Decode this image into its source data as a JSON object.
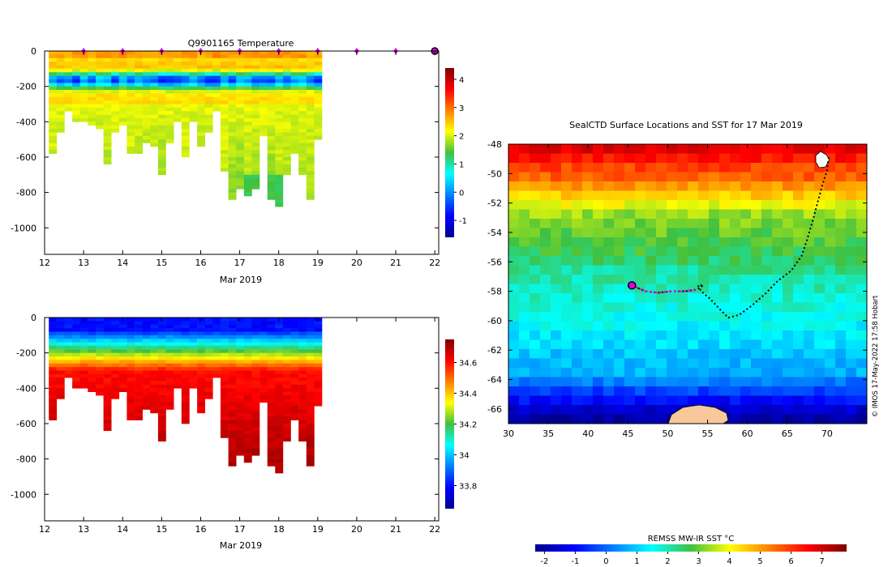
{
  "chart_data": [
    {
      "id": "temperature",
      "type": "heatmap",
      "title": "Q9901165  Temperature",
      "xlabel": "Mar 2019",
      "ylabel": "",
      "xlim": [
        12,
        22.1
      ],
      "ylim": [
        -1150,
        0
      ],
      "xticks": [
        12,
        13,
        14,
        15,
        16,
        17,
        18,
        19,
        20,
        21,
        22
      ],
      "yticks": [
        0,
        -200,
        -400,
        -600,
        -800,
        -1000
      ],
      "colorbar": {
        "min": -1.6,
        "max": 4.4,
        "ticks": [
          4,
          3,
          2,
          1,
          0,
          -1
        ],
        "colormap": "jet"
      },
      "surface_markers": [
        13,
        14,
        15,
        16,
        17,
        18,
        19,
        20,
        21
      ],
      "end_marker": 22,
      "profile_start": 12.1,
      "profile_step": 0.2,
      "profile_depths": [
        570,
        460,
        340,
        385,
        390,
        420,
        430,
        640,
        460,
        420,
        575,
        570,
        505,
        540,
        695,
        510,
        390,
        600,
        385,
        530,
        455,
        340,
        680,
        835,
        780,
        815,
        765,
        465,
        835,
        870,
        700,
        580,
        700,
        835,
        500
      ],
      "profile_profile": "surface ~2.5, cold core ~0 near 150-220 m, ~2 below 300 m"
    },
    {
      "id": "salinity",
      "type": "heatmap",
      "title": "",
      "xlabel": "Mar 2019",
      "ylabel": "",
      "xlim": [
        12,
        22.1
      ],
      "ylim": [
        -1150,
        0
      ],
      "xticks": [
        12,
        13,
        14,
        15,
        16,
        17,
        18,
        19,
        20,
        21,
        22
      ],
      "yticks": [
        0,
        -200,
        -400,
        -600,
        -800,
        -1000
      ],
      "colorbar": {
        "min": 33.65,
        "max": 34.75,
        "ticks": [
          34.6,
          34.4,
          34.2,
          34,
          33.8
        ],
        "colormap": "jet"
      },
      "profile_profile": "~33.8 at surface rising to ~34.65 below 400 m"
    },
    {
      "id": "sst-map",
      "type": "heatmap",
      "title": "SealCTD Surface Locations and SST for 17 Mar 2019",
      "xlabel": "",
      "ylabel": "",
      "xlim": [
        30,
        75
      ],
      "ylim": [
        -67,
        -48
      ],
      "xticks": [
        30,
        35,
        40,
        45,
        50,
        55,
        60,
        65,
        70
      ],
      "yticks": [
        -48,
        -50,
        -52,
        -54,
        -56,
        -58,
        -60,
        -62,
        -64,
        -66
      ],
      "colorbar": {
        "label": "REMSS MW-IR SST °C",
        "min": -2.3,
        "max": 7.8,
        "ticks": [
          -2,
          -1,
          0,
          1,
          2,
          3,
          4,
          5,
          6,
          7
        ],
        "colormap": "jet"
      },
      "track_lonlat": [
        [
          70.2,
          -48.9
        ],
        [
          70,
          -49.8
        ],
        [
          69.4,
          -50.8
        ],
        [
          68.8,
          -52
        ],
        [
          68.2,
          -53.2
        ],
        [
          67.5,
          -54.5
        ],
        [
          66.8,
          -55.6
        ],
        [
          65.5,
          -56.6
        ],
        [
          63.8,
          -57.3
        ],
        [
          62.2,
          -58.2
        ],
        [
          60.5,
          -59
        ],
        [
          59,
          -59.6
        ],
        [
          57.6,
          -59.8
        ],
        [
          56.5,
          -59.2
        ],
        [
          55.3,
          -58.5
        ],
        [
          54.2,
          -58
        ],
        [
          53.8,
          -57.6
        ],
        [
          54.5,
          -57.6
        ],
        [
          53.6,
          -57.9
        ],
        [
          52.2,
          -58
        ],
        [
          50.5,
          -58
        ],
        [
          48.8,
          -58.1
        ],
        [
          47.2,
          -58
        ],
        [
          45.5,
          -57.6
        ]
      ],
      "recent_track_lonlat": [
        [
          53.5,
          -57.9
        ],
        [
          52,
          -58
        ],
        [
          50.5,
          -58
        ],
        [
          48.8,
          -58.1
        ],
        [
          47.2,
          -58
        ],
        [
          45.5,
          -57.6
        ]
      ],
      "current_position": [
        45.5,
        -57.6
      ],
      "colors": {
        "track": "#000000",
        "recent_track": "#e000e0",
        "land": "#f7c89b"
      }
    }
  ],
  "credit": "© IMOS 17-May-2022 17:58 Hobart"
}
